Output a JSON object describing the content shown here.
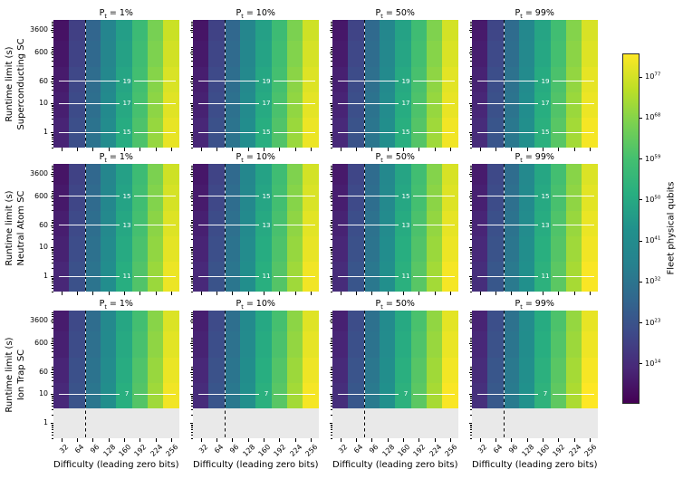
{
  "figure": {
    "background": "#ffffff"
  },
  "chart_data": {
    "type": "heatmap",
    "grid_shape": {
      "device_rows": 3,
      "probability_columns": 4
    },
    "columns": {
      "variable_base": "P",
      "variable_subscript": "t",
      "equals_text": " = ",
      "values": [
        "1%",
        "10%",
        "50%",
        "99%"
      ]
    },
    "x_axis": {
      "label": "Difficulty (leading zero bits)",
      "tick_labels": [
        "32",
        "64",
        "96",
        "128",
        "160",
        "192",
        "224",
        "256"
      ],
      "bin_centers": [
        32,
        64,
        96,
        128,
        160,
        192,
        224,
        256
      ]
    },
    "y_axis": {
      "scale": "log",
      "tick_labels": [
        "3600",
        "600",
        "60",
        "10",
        "1"
      ],
      "tick_values": [
        3600,
        600,
        60,
        10,
        1
      ],
      "range_s": [
        0.295,
        7943
      ]
    },
    "dashed_reference_difficulty_bits": 80,
    "color_scale": {
      "label": "Fleet physical qubits",
      "colormap": "viridis",
      "base": "10",
      "tick_exponents": [
        77,
        68,
        59,
        50,
        41,
        32,
        23,
        14
      ],
      "vmin_exp": 5.2,
      "vmax_exp": 82.2,
      "viridis_stops": [
        "#440154",
        "#482878",
        "#3e4a89",
        "#31688e",
        "#26828e",
        "#21918c",
        "#28ae80",
        "#44bf70",
        "#7ad151",
        "#bddf26",
        "#fde725"
      ]
    },
    "pt_offsets_decades": [
      0,
      0.5,
      1.0,
      1.5
    ],
    "infeasible_color": "#e9e9e9",
    "device_rows": [
      {
        "row_label_line1": "Runtime limit (s)",
        "row_label_line2": "Superconducting SC",
        "code_distance_lines": [
          {
            "runtime_s": 60,
            "label": "19"
          },
          {
            "runtime_s": 10,
            "label": "17"
          },
          {
            "runtime_s": 1,
            "label": "15"
          }
        ],
        "infeasible_below_runtime_s": null,
        "qubit_exponent_grid": [
          [
            8.6,
            18.3,
            27.9,
            37.5,
            47.2,
            56.8,
            66.4,
            76.1
          ],
          [
            9.4,
            19.1,
            28.7,
            38.3,
            48.0,
            57.6,
            67.2,
            76.9
          ],
          [
            10.4,
            20.1,
            29.7,
            39.3,
            49.0,
            58.6,
            68.2,
            77.9
          ],
          [
            11.2,
            20.9,
            30.5,
            40.1,
            49.8,
            59.4,
            69.0,
            78.7
          ],
          [
            12.2,
            21.9,
            31.5,
            41.1,
            50.8,
            60.4,
            70.0,
            79.7
          ]
        ]
      },
      {
        "row_label_line1": "Runtime limit (s)",
        "row_label_line2": "Neutral Atom SC",
        "code_distance_lines": [
          {
            "runtime_s": 600,
            "label": "15"
          },
          {
            "runtime_s": 60,
            "label": "13"
          },
          {
            "runtime_s": 1,
            "label": "11"
          }
        ],
        "infeasible_below_runtime_s": null,
        "qubit_exponent_grid": [
          [
            9.1,
            18.8,
            28.4,
            38.0,
            47.7,
            57.3,
            66.9,
            76.6
          ],
          [
            9.9,
            19.6,
            29.2,
            38.8,
            48.5,
            58.1,
            67.7,
            77.4
          ],
          [
            10.9,
            20.6,
            30.2,
            39.8,
            49.5,
            59.1,
            68.7,
            78.4
          ],
          [
            11.7,
            21.4,
            31.0,
            40.6,
            50.3,
            59.9,
            69.5,
            79.2
          ],
          [
            12.7,
            22.4,
            32.0,
            41.6,
            51.3,
            60.9,
            70.5,
            80.2
          ]
        ]
      },
      {
        "row_label_line1": "Runtime limit (s)",
        "row_label_line2": "Ion Trap SC",
        "code_distance_lines": [
          {
            "runtime_s": 10,
            "label": "7"
          }
        ],
        "infeasible_below_runtime_s": 3.16,
        "qubit_exponent_grid": [
          [
            10.6,
            20.3,
            29.9,
            39.5,
            49.2,
            58.8,
            68.4,
            78.1
          ],
          [
            11.4,
            21.1,
            30.7,
            40.3,
            50.0,
            59.6,
            69.2,
            78.9
          ],
          [
            12.4,
            22.1,
            31.7,
            41.3,
            51.0,
            60.6,
            70.2,
            79.9
          ],
          [
            13.2,
            22.9,
            32.5,
            42.1,
            51.8,
            61.4,
            71.0,
            80.7
          ],
          [
            null,
            null,
            null,
            null,
            null,
            null,
            null,
            null
          ]
        ]
      }
    ]
  }
}
